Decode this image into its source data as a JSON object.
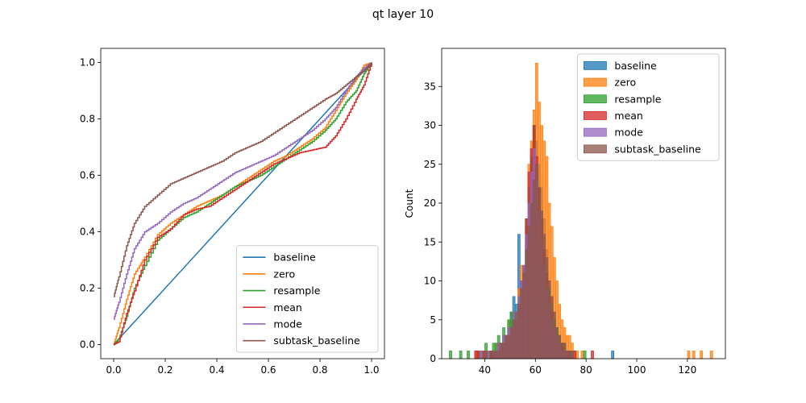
{
  "figure": {
    "title": "qt layer 10"
  },
  "chart_data": [
    {
      "type": "line",
      "xlim": [
        -0.05,
        1.05
      ],
      "ylim": [
        -0.05,
        1.05
      ],
      "xticks": [
        0.0,
        0.2,
        0.4,
        0.6,
        0.8,
        1.0
      ],
      "xtick_labels": [
        "0.0",
        "0.2",
        "0.4",
        "0.6",
        "0.8",
        "1.0"
      ],
      "yticks": [
        0.0,
        0.2,
        0.4,
        0.6,
        0.8,
        1.0
      ],
      "ytick_labels": [
        "0.0",
        "0.2",
        "0.4",
        "0.6",
        "0.8",
        "1.0"
      ],
      "xlabel": "",
      "ylabel": "",
      "grid": false,
      "legend_position": "lower-right",
      "series": [
        {
          "name": "baseline",
          "color": "#1f77b4",
          "x": [
            0.0,
            0.66,
            1.0
          ],
          "y": [
            0.0,
            0.66,
            1.0
          ]
        },
        {
          "name": "zero",
          "color": "#ff7f0e",
          "x": [
            0.0,
            0.02,
            0.05,
            0.08,
            0.12,
            0.17,
            0.22,
            0.27,
            0.32,
            0.37,
            0.42,
            0.47,
            0.52,
            0.57,
            0.62,
            0.67,
            0.72,
            0.77,
            0.82,
            0.86,
            0.9,
            0.94,
            0.97,
            1.0
          ],
          "y": [
            0.0,
            0.06,
            0.16,
            0.25,
            0.31,
            0.39,
            0.43,
            0.46,
            0.49,
            0.51,
            0.53,
            0.56,
            0.59,
            0.62,
            0.65,
            0.67,
            0.7,
            0.73,
            0.77,
            0.83,
            0.89,
            0.94,
            0.99,
            1.0
          ]
        },
        {
          "name": "resample",
          "color": "#2ca02c",
          "x": [
            0.0,
            0.02,
            0.05,
            0.08,
            0.12,
            0.17,
            0.22,
            0.27,
            0.32,
            0.37,
            0.42,
            0.47,
            0.52,
            0.57,
            0.62,
            0.67,
            0.72,
            0.77,
            0.82,
            0.86,
            0.9,
            0.94,
            0.97,
            1.0
          ],
          "y": [
            0.0,
            0.02,
            0.1,
            0.2,
            0.28,
            0.37,
            0.41,
            0.45,
            0.47,
            0.5,
            0.53,
            0.56,
            0.58,
            0.6,
            0.63,
            0.66,
            0.69,
            0.72,
            0.76,
            0.8,
            0.86,
            0.9,
            0.96,
            1.0
          ]
        },
        {
          "name": "mean",
          "color": "#d62728",
          "x": [
            0.0,
            0.02,
            0.05,
            0.08,
            0.12,
            0.17,
            0.22,
            0.27,
            0.32,
            0.37,
            0.42,
            0.47,
            0.52,
            0.57,
            0.62,
            0.67,
            0.72,
            0.77,
            0.82,
            0.86,
            0.9,
            0.94,
            0.97,
            1.0
          ],
          "y": [
            0.0,
            0.01,
            0.11,
            0.19,
            0.3,
            0.38,
            0.41,
            0.46,
            0.48,
            0.49,
            0.52,
            0.55,
            0.58,
            0.61,
            0.64,
            0.66,
            0.68,
            0.69,
            0.7,
            0.74,
            0.8,
            0.87,
            0.92,
            1.0
          ]
        },
        {
          "name": "mode",
          "color": "#9467bd",
          "x": [
            0.0,
            0.02,
            0.05,
            0.08,
            0.12,
            0.17,
            0.22,
            0.27,
            0.32,
            0.37,
            0.42,
            0.47,
            0.52,
            0.57,
            0.62,
            0.67,
            0.72,
            0.77,
            0.82,
            0.86,
            0.9,
            0.94,
            0.97,
            1.0
          ],
          "y": [
            0.09,
            0.15,
            0.25,
            0.34,
            0.4,
            0.43,
            0.47,
            0.5,
            0.52,
            0.55,
            0.58,
            0.61,
            0.63,
            0.65,
            0.67,
            0.7,
            0.73,
            0.76,
            0.8,
            0.84,
            0.9,
            0.95,
            0.98,
            1.0
          ]
        },
        {
          "name": "subtask_baseline",
          "color": "#8c564b",
          "x": [
            0.0,
            0.02,
            0.05,
            0.08,
            0.12,
            0.17,
            0.22,
            0.27,
            0.32,
            0.37,
            0.42,
            0.47,
            0.52,
            0.57,
            0.62,
            0.67,
            0.72,
            0.77,
            0.82,
            0.86,
            0.9,
            0.94,
            0.97,
            1.0
          ],
          "y": [
            0.17,
            0.24,
            0.35,
            0.43,
            0.49,
            0.53,
            0.57,
            0.59,
            0.61,
            0.63,
            0.65,
            0.68,
            0.7,
            0.72,
            0.75,
            0.78,
            0.81,
            0.84,
            0.87,
            0.89,
            0.92,
            0.95,
            0.97,
            1.0
          ]
        }
      ]
    },
    {
      "type": "histogram",
      "xlim": [
        23,
        135
      ],
      "ylim": [
        0,
        39.9
      ],
      "xticks": [
        40,
        60,
        80,
        100,
        120
      ],
      "xtick_labels": [
        "40",
        "60",
        "80",
        "100",
        "120"
      ],
      "yticks": [
        0,
        5,
        10,
        15,
        20,
        25,
        30,
        35
      ],
      "ytick_labels": [
        "0",
        "5",
        "10",
        "15",
        "20",
        "25",
        "30",
        "35"
      ],
      "xlabel": "",
      "ylabel": "Count",
      "grid": false,
      "legend_position": "upper-right",
      "bin_width": 1,
      "bar_alpha": 0.75,
      "series": [
        {
          "name": "baseline",
          "color": "#1f77b4",
          "bin_start": 38,
          "counts": [
            1,
            0,
            1,
            0,
            1,
            0,
            1,
            1,
            2,
            3,
            2,
            4,
            6,
            8,
            7,
            16,
            10,
            12,
            15,
            18,
            22,
            25,
            28,
            25,
            22,
            18,
            14,
            10,
            8,
            6,
            4,
            3,
            2,
            1,
            1,
            0,
            1,
            0,
            0,
            0,
            0,
            0,
            0,
            0,
            0,
            0,
            0,
            0,
            0,
            0,
            0,
            0,
            1
          ]
        },
        {
          "name": "zero",
          "color": "#ff7f0e",
          "bin_start": 36,
          "counts": [
            1,
            1,
            1,
            0,
            1,
            1,
            1,
            1,
            2,
            1,
            2,
            3,
            3,
            5,
            4,
            6,
            5,
            9,
            12,
            11,
            17,
            25,
            28,
            32,
            38,
            33,
            30,
            28,
            26,
            20,
            17,
            13,
            10,
            7,
            5,
            4,
            3,
            3,
            2,
            1,
            1,
            0,
            1,
            0,
            0,
            0,
            0,
            0,
            0,
            0,
            0,
            0,
            0,
            0,
            0,
            0,
            0,
            0,
            0,
            0,
            0,
            0,
            0,
            0,
            0,
            0,
            0,
            0,
            0,
            0,
            0,
            0,
            0,
            0,
            0,
            0,
            0,
            0,
            0,
            0,
            0,
            0,
            0,
            0,
            1,
            0,
            1,
            0,
            0,
            1,
            0,
            0,
            0,
            1
          ]
        },
        {
          "name": "resample",
          "color": "#2ca02c",
          "bin_start": 26,
          "counts": [
            1,
            0,
            0,
            0,
            1,
            0,
            0,
            1,
            0,
            0,
            0,
            1,
            1,
            1,
            2,
            1,
            1,
            2,
            2,
            3,
            2,
            4,
            3,
            5,
            6,
            6,
            5,
            8,
            10,
            12,
            18,
            22,
            26,
            30,
            23,
            20,
            15,
            13,
            11,
            9,
            7,
            5,
            4,
            3,
            2,
            2,
            1,
            1,
            1,
            0,
            0,
            0,
            0,
            1
          ]
        },
        {
          "name": "mean",
          "color": "#d62728",
          "bin_start": 36,
          "counts": [
            1,
            1,
            0,
            1,
            1,
            0,
            1,
            1,
            1,
            2,
            1,
            2,
            3,
            3,
            4,
            5,
            5,
            7,
            10,
            12,
            18,
            24,
            27,
            30,
            26,
            22,
            18,
            14,
            11,
            8,
            6,
            4,
            3,
            2,
            2,
            1,
            1,
            1,
            1,
            1,
            0,
            0,
            0,
            0,
            0,
            0,
            1
          ]
        },
        {
          "name": "mode",
          "color": "#9467bd",
          "bin_start": 38,
          "counts": [
            1,
            0,
            1,
            1,
            0,
            1,
            1,
            2,
            2,
            3,
            3,
            4,
            4,
            6,
            5,
            8,
            10,
            12,
            16,
            20,
            24,
            27,
            23,
            19,
            15,
            12,
            9,
            7,
            5,
            4,
            3,
            2,
            1,
            1,
            1,
            0,
            1
          ]
        },
        {
          "name": "subtask_baseline",
          "color": "#8c564b",
          "bin_start": 40,
          "counts": [
            1,
            0,
            1,
            1,
            1,
            1,
            2,
            2,
            3,
            3,
            4,
            5,
            6,
            7,
            9,
            11,
            14,
            17,
            20,
            23,
            25,
            22,
            19,
            16,
            13,
            10,
            8,
            6,
            4,
            3,
            2,
            2,
            1,
            1,
            1
          ]
        }
      ]
    }
  ]
}
